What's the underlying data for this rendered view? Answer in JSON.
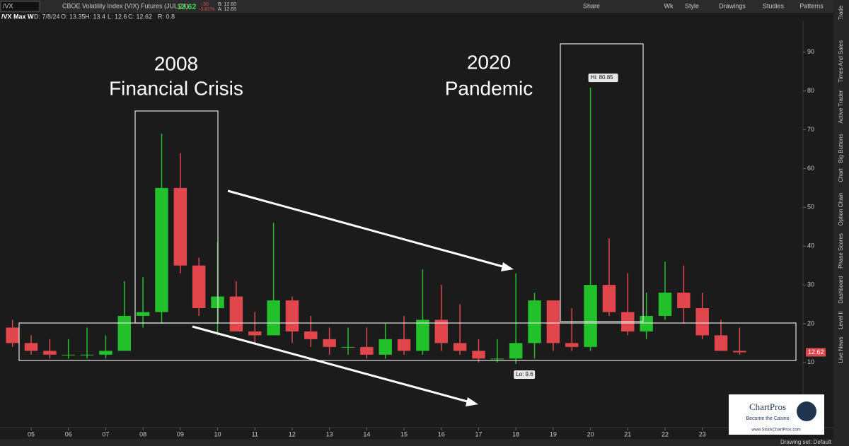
{
  "toolbar": {
    "symbol": "/VX",
    "description": "CBOE Volatility Index (VIX) Futures (JUL 24)",
    "last": "12.62",
    "change": "-.50",
    "change_pct": "-3.81%",
    "bid": "B: 12.60",
    "ask": "A: 12.65",
    "buttons": [
      "Share",
      "Wk",
      "Style",
      "Drawings",
      "Studies",
      "Patterns"
    ]
  },
  "info_bar": [
    "/VX Max W",
    "D: 7/8/24",
    "O: 13.35",
    "H: 13.4",
    "L: 12.6",
    "C: 12.62",
    "R: 0.8"
  ],
  "sidebar_tabs": [
    "Trade",
    "Times And Sales",
    "Active Trader",
    "Big Buttons",
    "Chart",
    "Option Chain",
    "Phase Scores",
    "Dashboard",
    "Level II",
    "Live News"
  ],
  "logo": {
    "name": "ChartPros",
    "tagline": "Become the Casino",
    "url": "www.StockChartPros.com"
  },
  "status": "Drawing set: Default",
  "chart_data": {
    "type": "candlestick",
    "annotations": {
      "crisis_year": "2008",
      "crisis_name": "Financial Crisis",
      "pandemic_year": "2020",
      "pandemic_name": "Pandemic",
      "high": "Hi: 80.85",
      "low": "Lo: 9.6",
      "last": "12.62"
    },
    "x": [
      2004.5,
      2005.0,
      2005.5,
      2006.0,
      2006.5,
      2007.0,
      2007.5,
      2008.0,
      2008.5,
      2009.0,
      2009.5,
      2010.0,
      2010.5,
      2011.0,
      2011.5,
      2012.0,
      2012.5,
      2013.0,
      2013.5,
      2014.0,
      2014.5,
      2015.0,
      2015.5,
      2016.0,
      2016.5,
      2017.0,
      2017.5,
      2018.0,
      2018.5,
      2019.0,
      2019.5,
      2020.0,
      2020.5,
      2021.0,
      2021.5,
      2022.0,
      2022.5,
      2023.0,
      2023.5,
      2024.0
    ],
    "open": [
      19,
      15,
      13,
      12,
      12,
      12,
      13,
      22,
      23,
      55,
      35,
      24,
      27,
      18,
      17,
      26,
      18,
      16,
      14,
      14,
      12,
      16,
      13,
      21,
      15,
      13,
      11,
      11,
      15,
      26,
      15,
      14,
      30,
      23,
      18,
      22,
      28,
      24,
      17,
      13
    ],
    "high": [
      21,
      17,
      16,
      16,
      19,
      17,
      31,
      32,
      69,
      64,
      37,
      41,
      31,
      23,
      46,
      27,
      22,
      19,
      19,
      19,
      20,
      22,
      34,
      30,
      25,
      16,
      16,
      33,
      28,
      26,
      24,
      80.85,
      42,
      33,
      28,
      36,
      35,
      28,
      21,
      19
    ],
    "low": [
      14,
      12,
      11,
      11,
      11,
      11,
      13,
      19,
      20,
      33,
      22,
      17,
      18,
      15,
      17,
      15,
      14,
      12,
      12,
      11,
      11,
      12,
      12,
      13,
      12,
      10,
      10,
      9.6,
      11,
      13,
      13,
      13,
      22,
      17,
      16,
      21,
      20,
      16,
      13,
      12
    ],
    "close": [
      15,
      13,
      12,
      12,
      12,
      13,
      22,
      23,
      55,
      35,
      24,
      27,
      18,
      17,
      26,
      18,
      16,
      14,
      14,
      12,
      16,
      13,
      21,
      15,
      13,
      11,
      11,
      15,
      26,
      15,
      14,
      30,
      23,
      18,
      22,
      28,
      24,
      17,
      13,
      12.62
    ],
    "up_color": "#22c02a",
    "down_color": "#e0464c",
    "xlim": [
      2004.165,
      2025.7
    ],
    "xticks": [
      {
        "value": 2005,
        "label": "05"
      },
      {
        "value": 2006,
        "label": "06"
      },
      {
        "value": 2007,
        "label": "07"
      },
      {
        "value": 2008,
        "label": "08"
      },
      {
        "value": 2009,
        "label": "09"
      },
      {
        "value": 2010,
        "label": "10"
      },
      {
        "value": 2011,
        "label": "11"
      },
      {
        "value": 2012,
        "label": "12"
      },
      {
        "value": 2013,
        "label": "13"
      },
      {
        "value": 2014,
        "label": "14"
      },
      {
        "value": 2015,
        "label": "15"
      },
      {
        "value": 2016,
        "label": "16"
      },
      {
        "value": 2017,
        "label": "17"
      },
      {
        "value": 2018,
        "label": "18"
      },
      {
        "value": 2019,
        "label": "19"
      },
      {
        "value": 2020,
        "label": "20"
      },
      {
        "value": 2021,
        "label": "21"
      },
      {
        "value": 2022,
        "label": "22"
      },
      {
        "value": 2023,
        "label": "23"
      }
    ],
    "ylim": [
      -6.8,
      96.9
    ],
    "yticks": [
      10,
      20,
      30,
      40,
      50,
      60,
      70,
      80,
      90
    ]
  }
}
